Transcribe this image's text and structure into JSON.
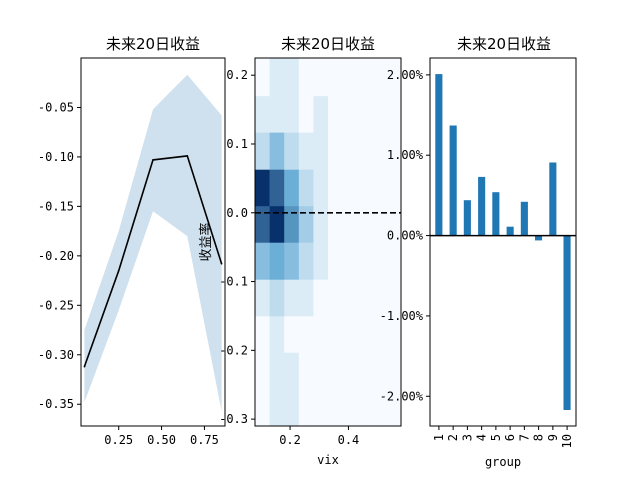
{
  "chart_data": [
    {
      "type": "line",
      "title": "未来20日收益",
      "x": [
        0.05,
        0.25,
        0.45,
        0.65,
        0.85
      ],
      "series": [
        {
          "values": [
            -0.312,
            -0.215,
            -0.103,
            -0.099,
            -0.208
          ],
          "band_lower": [
            -0.348,
            -0.255,
            -0.155,
            -0.18,
            -0.357
          ],
          "band_upper": [
            -0.275,
            -0.175,
            -0.052,
            -0.017,
            -0.058
          ],
          "color": "#000000",
          "band_color": "#cfe0ee"
        }
      ],
      "xlim": [
        0.03,
        0.87
      ],
      "ylim": [
        -0.372,
        0.0
      ],
      "xticks": [
        0.25,
        0.5,
        0.75
      ],
      "xtick_labels": [
        "0.25",
        "0.50",
        "0.75"
      ],
      "yticks": [
        -0.05,
        -0.1,
        -0.15,
        -0.2,
        -0.25,
        -0.3,
        -0.35
      ],
      "ytick_labels": [
        "-0.05",
        "-0.10",
        "-0.15",
        "-0.20",
        "-0.25",
        "-0.30",
        "-0.35"
      ]
    },
    {
      "type": "heatmap",
      "title": "未来20日收益",
      "xlabel": "vix",
      "ylabel": "收益率",
      "xlim": [
        0.08,
        0.58
      ],
      "ylim": [
        -0.31,
        0.225
      ],
      "x_edges": [
        0.08,
        0.13,
        0.18,
        0.23,
        0.28,
        0.33,
        0.38,
        0.43,
        0.48,
        0.53,
        0.58
      ],
      "y_edges": [
        -0.31,
        -0.257,
        -0.203,
        -0.15,
        -0.097,
        -0.043,
        0.01,
        0.063,
        0.117,
        0.17,
        0.225
      ],
      "values": [
        [
          0,
          1,
          1,
          0,
          0,
          0,
          0,
          0,
          0,
          0
        ],
        [
          0,
          1,
          1,
          0,
          0,
          0,
          0,
          0,
          0,
          0
        ],
        [
          0,
          1,
          0,
          0,
          0,
          0,
          0,
          0,
          0,
          0
        ],
        [
          1,
          2,
          1,
          1,
          0,
          0,
          0,
          0,
          0,
          0
        ],
        [
          4,
          5,
          4,
          2,
          1,
          0,
          0,
          0,
          0,
          0
        ],
        [
          8,
          10,
          6,
          3,
          1,
          0,
          0,
          0,
          0,
          0
        ],
        [
          10,
          8,
          5,
          2,
          1,
          0,
          0,
          0,
          0,
          0
        ],
        [
          2,
          4,
          2,
          1,
          1,
          0,
          0,
          0,
          0,
          0
        ],
        [
          1,
          1,
          1,
          0,
          1,
          0,
          0,
          0,
          0,
          0
        ],
        [
          0,
          1,
          1,
          0,
          0,
          0,
          0,
          0,
          0,
          0
        ]
      ],
      "vmax": 10,
      "hline": 0.0,
      "xticks": [
        0.2,
        0.4
      ],
      "xtick_labels": [
        "0.2",
        "0.4"
      ],
      "yticks": [
        0.2,
        0.1,
        0.0,
        -0.1,
        -0.2,
        -0.3
      ],
      "ytick_labels": [
        "0.2",
        "0.1",
        "0.0",
        "-0.1",
        "-0.2",
        "-0.3"
      ]
    },
    {
      "type": "bar",
      "title": "未来20日收益",
      "xlabel": "group",
      "categories": [
        "1",
        "2",
        "3",
        "4",
        "5",
        "6",
        "7",
        "8",
        "9",
        "10"
      ],
      "values": [
        0.0201,
        0.0137,
        0.0044,
        0.0073,
        0.0054,
        0.0011,
        0.0042,
        -0.0006,
        0.0091,
        -0.0217
      ],
      "ylim": [
        -0.0237,
        0.0221
      ],
      "yticks": [
        0.02,
        0.01,
        0.0,
        -0.01,
        -0.02
      ],
      "ytick_labels": [
        "2.00%",
        "1.00%",
        "0.00%",
        "-1.00%",
        "-2.00%"
      ],
      "color": "#1f77b4"
    }
  ]
}
